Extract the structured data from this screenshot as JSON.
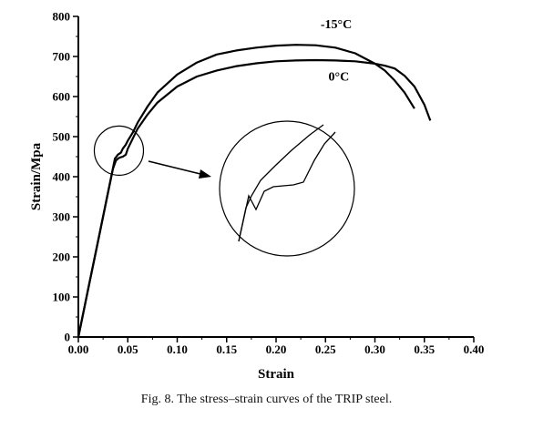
{
  "caption": "Fig. 8.  The stress–strain curves of the TRIP steel.",
  "chart_data": {
    "type": "line",
    "xlabel": "Strain",
    "ylabel": "Strain/Mpa",
    "xlim": [
      0,
      0.4
    ],
    "ylim": [
      0,
      800
    ],
    "x_ticks": [
      "0.00",
      "0.05",
      "0.10",
      "0.15",
      "0.20",
      "0.25",
      "0.30",
      "0.35",
      "0.40"
    ],
    "y_ticks": [
      "0",
      "100",
      "200",
      "300",
      "400",
      "500",
      "600",
      "700",
      "800"
    ],
    "grid": false,
    "series": [
      {
        "name": "-15°C",
        "color": "#000000",
        "x": [
          0.0,
          0.01,
          0.02,
          0.03,
          0.037,
          0.04,
          0.043,
          0.045,
          0.048,
          0.05,
          0.055,
          0.06,
          0.07,
          0.08,
          0.1,
          0.12,
          0.14,
          0.16,
          0.18,
          0.2,
          0.22,
          0.24,
          0.26,
          0.28,
          0.3,
          0.31,
          0.32,
          0.33,
          0.34
        ],
        "y": [
          0,
          120,
          240,
          360,
          445,
          455,
          460,
          470,
          480,
          490,
          510,
          535,
          575,
          610,
          655,
          685,
          705,
          715,
          722,
          727,
          729,
          728,
          722,
          708,
          682,
          665,
          640,
          610,
          570
        ]
      },
      {
        "name": "0°C",
        "color": "#000000",
        "x": [
          0.0,
          0.01,
          0.02,
          0.03,
          0.035,
          0.038,
          0.04,
          0.042,
          0.045,
          0.048,
          0.05,
          0.055,
          0.06,
          0.07,
          0.08,
          0.1,
          0.12,
          0.14,
          0.16,
          0.18,
          0.2,
          0.22,
          0.24,
          0.26,
          0.28,
          0.3,
          0.31,
          0.32,
          0.33,
          0.34,
          0.35,
          0.356
        ],
        "y": [
          0,
          120,
          240,
          360,
          420,
          440,
          445,
          448,
          450,
          455,
          470,
          495,
          520,
          555,
          585,
          625,
          650,
          665,
          676,
          683,
          688,
          690,
          691,
          690,
          688,
          682,
          677,
          670,
          652,
          625,
          580,
          540
        ]
      }
    ],
    "annotations": {
      "series_labels_inline": true,
      "zoom_circle_small": {
        "center_x": 0.041,
        "center_y": 465,
        "note": "highlighted region with magnified inset"
      },
      "magnified_inset": true
    }
  }
}
